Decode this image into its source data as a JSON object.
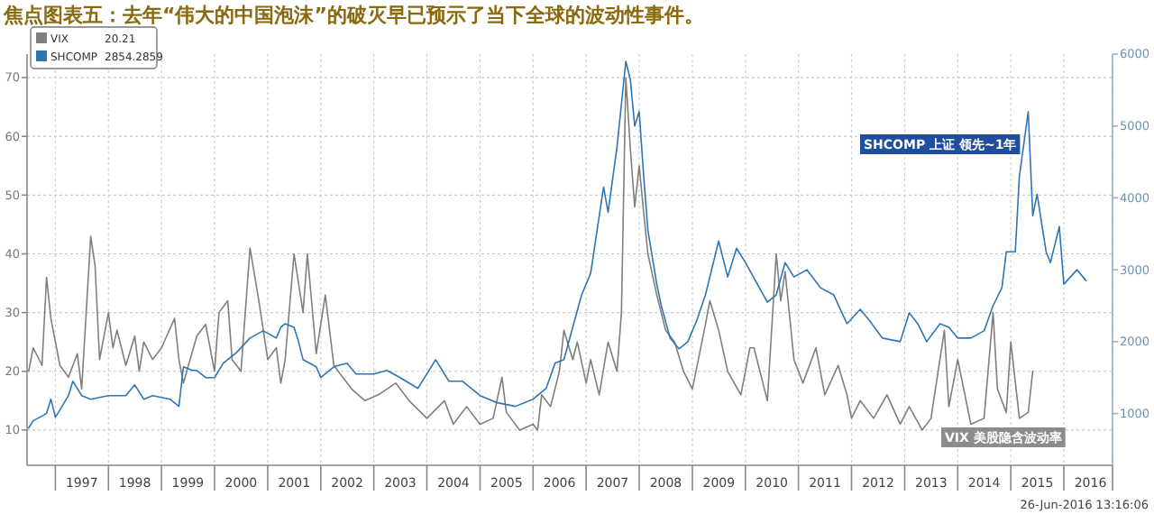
{
  "chart_data": {
    "type": "line",
    "title": "焦点图表五：去年“伟大的中国泡沫”的破灭早已预示了当下全球的波动性事件。",
    "xlim": [
      "1996-06-20",
      "2016-12-01"
    ],
    "xticks": [
      {
        "value": "1997-01-01",
        "label": null
      },
      {
        "value": "1997-07-02",
        "label": "1997"
      },
      {
        "value": "1998-01-01",
        "label": null
      },
      {
        "value": "1998-07-02",
        "label": "1998"
      },
      {
        "value": "1999-01-01",
        "label": null
      },
      {
        "value": "1999-07-02",
        "label": "1999"
      },
      {
        "value": "2000-01-01",
        "label": null
      },
      {
        "value": "2000-07-02",
        "label": "2000"
      },
      {
        "value": "2001-01-01",
        "label": null
      },
      {
        "value": "2001-07-02",
        "label": "2001"
      },
      {
        "value": "2002-01-01",
        "label": null
      },
      {
        "value": "2002-07-02",
        "label": "2002"
      },
      {
        "value": "2003-01-01",
        "label": null
      },
      {
        "value": "2003-07-02",
        "label": "2003"
      },
      {
        "value": "2004-01-01",
        "label": null
      },
      {
        "value": "2004-07-02",
        "label": "2004"
      },
      {
        "value": "2005-01-01",
        "label": null
      },
      {
        "value": "2005-07-02",
        "label": "2005"
      },
      {
        "value": "2006-01-01",
        "label": null
      },
      {
        "value": "2006-07-02",
        "label": "2006"
      },
      {
        "value": "2007-01-01",
        "label": null
      },
      {
        "value": "2007-07-02",
        "label": "2007"
      },
      {
        "value": "2008-01-01",
        "label": null
      },
      {
        "value": "2008-07-02",
        "label": "2008"
      },
      {
        "value": "2009-01-01",
        "label": null
      },
      {
        "value": "2009-07-02",
        "label": "2009"
      },
      {
        "value": "2010-01-01",
        "label": null
      },
      {
        "value": "2010-07-02",
        "label": "2010"
      },
      {
        "value": "2011-01-01",
        "label": null
      },
      {
        "value": "2011-07-02",
        "label": "2011"
      },
      {
        "value": "2012-01-01",
        "label": null
      },
      {
        "value": "2012-07-02",
        "label": "2012"
      },
      {
        "value": "2013-01-01",
        "label": null
      },
      {
        "value": "2013-07-02",
        "label": "2013"
      },
      {
        "value": "2014-01-01",
        "label": null
      },
      {
        "value": "2014-07-02",
        "label": "2014"
      },
      {
        "value": "2015-01-01",
        "label": null
      },
      {
        "value": "2015-07-02",
        "label": "2015"
      },
      {
        "value": "2016-01-01",
        "label": null
      },
      {
        "value": "2016-07-02",
        "label": "2016"
      },
      {
        "value": "2016-12-01",
        "label": null
      }
    ],
    "ylim": [
      4,
      74
    ],
    "yticks": [
      10,
      20,
      30,
      40,
      50,
      60,
      70
    ],
    "y2lim": [
      280,
      6000
    ],
    "y2ticks": [
      1000,
      2000,
      3000,
      4000,
      5000,
      6000
    ],
    "grid": true,
    "legend": "top left",
    "series": [
      {
        "name": "VIX",
        "color": "#7f7f7f",
        "x": [
          "1996-07",
          "1996-08",
          "1996-10",
          "1996-11",
          "1996-12",
          "1997-02",
          "1997-04",
          "1997-06",
          "1997-07",
          "1997-08",
          "1997-09",
          "1997-10",
          "1997-11",
          "1998-01",
          "1998-02",
          "1998-03",
          "1998-05",
          "1998-07",
          "1998-08",
          "1998-09",
          "1998-11",
          "1999-01",
          "1999-04",
          "1999-05",
          "1999-06",
          "1999-09",
          "1999-11",
          "2000-01",
          "2000-02",
          "2000-04",
          "2000-05",
          "2000-07",
          "2000-09",
          "2000-11",
          "2001-01",
          "2001-03",
          "2001-04",
          "2001-05",
          "2001-07",
          "2001-09",
          "2001-10",
          "2001-12",
          "2002-01",
          "2002-02",
          "2002-04",
          "2002-05",
          "2002-08",
          "2002-11",
          "2003-02",
          "2003-06",
          "2003-09",
          "2004-01",
          "2004-05",
          "2004-07",
          "2004-10",
          "2005-01",
          "2005-04",
          "2005-06",
          "2005-07",
          "2005-10",
          "2006-01",
          "2006-02",
          "2006-03",
          "2006-05",
          "2006-07",
          "2006-08",
          "2006-10",
          "2006-11",
          "2007-01",
          "2007-02",
          "2007-04",
          "2007-06",
          "2007-08",
          "2007-09",
          "2007-10",
          "2007-11",
          "2007-12",
          "2008-01",
          "2008-02",
          "2008-03",
          "2008-05",
          "2008-07",
          "2008-09",
          "2008-11",
          "2009-01",
          "2009-04",
          "2009-05",
          "2009-07",
          "2009-09",
          "2009-12",
          "2010-02",
          "2010-03",
          "2010-06",
          "2010-08",
          "2010-09",
          "2010-10",
          "2010-12",
          "2011-02",
          "2011-05",
          "2011-07",
          "2011-10",
          "2011-12",
          "2012-01",
          "2012-03",
          "2012-06",
          "2012-09",
          "2012-12",
          "2013-02",
          "2013-05",
          "2013-07",
          "2013-10",
          "2013-11",
          "2014-01",
          "2014-04",
          "2014-07",
          "2014-09",
          "2014-10",
          "2014-12",
          "2015-01",
          "2015-03",
          "2015-05",
          "2015-06"
        ],
        "values": [
          20,
          24,
          21,
          36,
          29,
          21,
          19,
          23,
          17,
          30,
          43,
          38,
          22,
          30,
          24,
          27,
          21,
          26,
          20,
          25,
          22,
          24,
          29,
          22,
          18,
          26,
          28,
          20,
          30,
          32,
          22,
          20,
          41,
          32,
          22,
          24,
          18,
          22,
          40,
          30,
          40,
          23,
          28,
          33,
          21,
          20,
          17,
          15,
          16,
          18,
          15,
          12,
          15,
          11,
          14,
          11,
          12,
          19,
          13,
          10,
          11,
          10,
          16,
          14,
          20,
          27,
          22,
          25,
          18,
          22,
          16,
          25,
          20,
          30,
          70,
          58,
          48,
          55,
          47,
          40,
          33,
          27,
          25,
          20,
          17,
          28,
          32,
          27,
          20,
          16,
          24,
          24,
          15,
          40,
          32,
          37,
          22,
          18,
          24,
          16,
          21,
          16,
          12,
          15,
          12,
          16,
          11,
          14,
          10,
          12,
          27,
          14,
          22,
          11,
          12,
          30,
          17,
          13,
          25,
          12,
          13,
          20
        ]
      },
      {
        "name": "SHCOMP",
        "color": "#2e75b6",
        "axis": "y2",
        "x": [
          "1996-07",
          "1996-08",
          "1996-11",
          "1996-12",
          "1997-01",
          "1997-02",
          "1997-04",
          "1997-05",
          "1997-07",
          "1997-09",
          "1998-01",
          "1998-05",
          "1998-07",
          "1998-09",
          "1998-11",
          "1999-03",
          "1999-04",
          "1999-05",
          "1999-06",
          "1999-08",
          "1999-09",
          "1999-11",
          "2000-01",
          "2000-03",
          "2000-06",
          "2000-09",
          "2000-12",
          "2001-03",
          "2001-04",
          "2001-05",
          "2001-07",
          "2001-08",
          "2001-09",
          "2001-12",
          "2002-01",
          "2002-04",
          "2002-07",
          "2002-09",
          "2003-01",
          "2003-04",
          "2003-07",
          "2003-11",
          "2004-03",
          "2004-06",
          "2004-09",
          "2005-01",
          "2005-05",
          "2005-09",
          "2006-01",
          "2006-04",
          "2006-06",
          "2006-08",
          "2006-12",
          "2007-02",
          "2007-05",
          "2007-06",
          "2007-08",
          "2007-10",
          "2007-11",
          "2007-12",
          "2008-01",
          "2008-02",
          "2008-03",
          "2008-05",
          "2008-06",
          "2008-08",
          "2008-10",
          "2008-12",
          "2009-02",
          "2009-04",
          "2009-07",
          "2009-09",
          "2009-11",
          "2010-01",
          "2010-06",
          "2010-08",
          "2010-10",
          "2010-12",
          "2011-03",
          "2011-06",
          "2011-09",
          "2011-12",
          "2012-03",
          "2012-05",
          "2012-08",
          "2012-12",
          "2013-02",
          "2013-04",
          "2013-06",
          "2013-09",
          "2013-11",
          "2014-01",
          "2014-04",
          "2014-07",
          "2014-09",
          "2014-11",
          "2014-12",
          "2015-02",
          "2015-03",
          "2015-05",
          "2015-06",
          "2015-07",
          "2015-09",
          "2015-10",
          "2015-12",
          "2016-01",
          "2016-04",
          "2016-06"
        ],
        "values": [
          800,
          900,
          1000,
          1200,
          950,
          1050,
          1250,
          1450,
          1250,
          1200,
          1250,
          1250,
          1400,
          1200,
          1250,
          1200,
          1150,
          1100,
          1650,
          1600,
          1600,
          1500,
          1500,
          1700,
          1850,
          2050,
          2150,
          2050,
          2200,
          2250,
          2200,
          2000,
          1750,
          1650,
          1500,
          1650,
          1700,
          1550,
          1550,
          1600,
          1500,
          1350,
          1750,
          1450,
          1450,
          1250,
          1150,
          1100,
          1200,
          1350,
          1700,
          1750,
          2650,
          2950,
          4150,
          3800,
          4700,
          5900,
          5650,
          5000,
          5200,
          4300,
          3550,
          2800,
          2500,
          2050,
          1900,
          2000,
          2300,
          2650,
          3400,
          2900,
          3300,
          3100,
          2550,
          2650,
          3100,
          2900,
          3000,
          2750,
          2650,
          2250,
          2450,
          2300,
          2050,
          2000,
          2400,
          2250,
          2000,
          2250,
          2200,
          2050,
          2050,
          2150,
          2500,
          2750,
          3250,
          3250,
          4300,
          5200,
          3750,
          4050,
          3250,
          3100,
          3600,
          2800,
          3000,
          2850
        ]
      }
    ],
    "annotations": [
      "20.21",
      "2854.2859",
      "VIX 美股隐含波动率",
      "SHCOMP 上证 领先~1年",
      "26-Jun-2016 13:16:06"
    ]
  }
}
